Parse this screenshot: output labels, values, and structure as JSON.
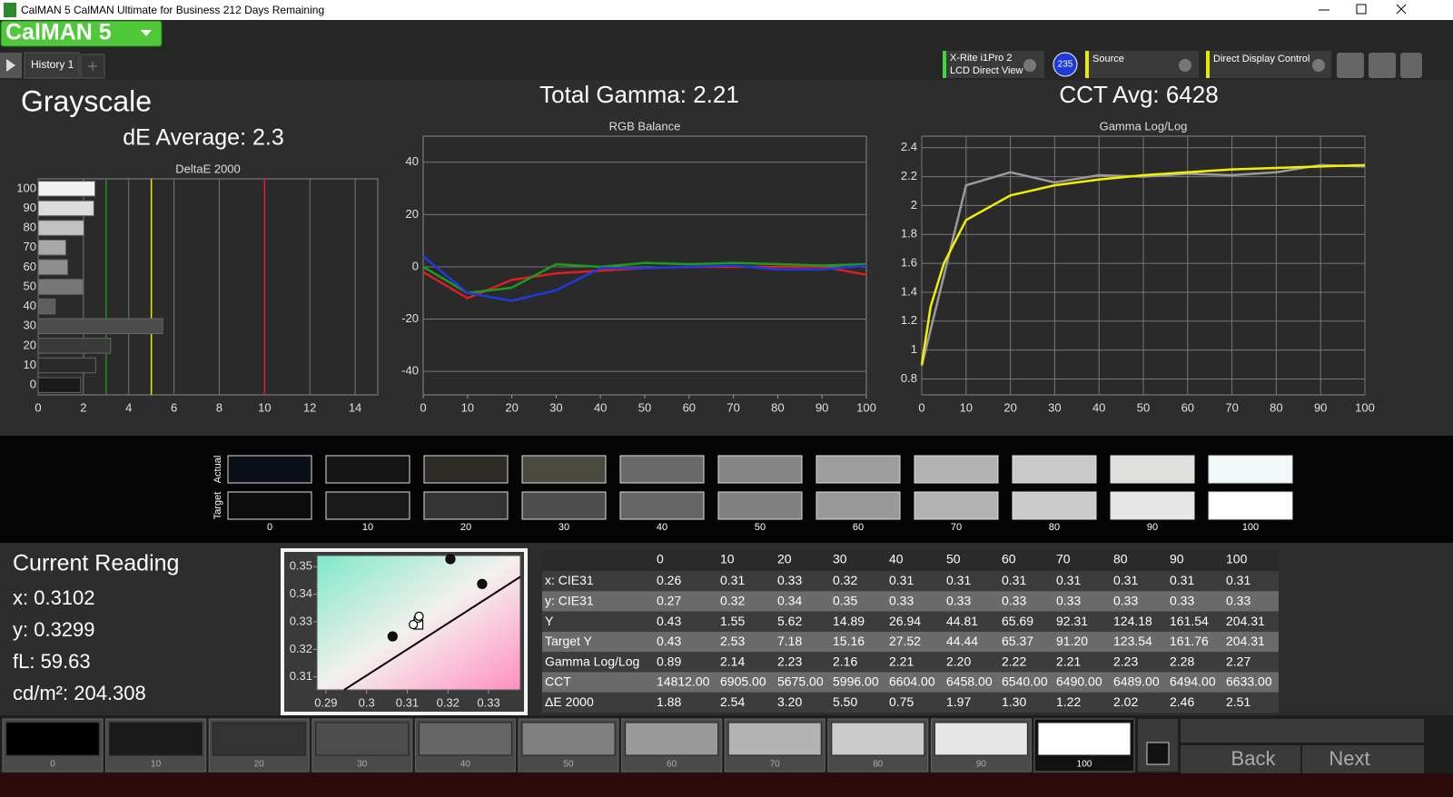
{
  "window": {
    "title": "CalMAN 5 CalMAN Ultimate for Business 212 Days Remaining"
  },
  "toolbar": {
    "logo": "CalMAN 5",
    "tab": "History 1",
    "meter": [
      "X-Rite i1Pro 2",
      "LCD Direct View"
    ],
    "badge": "235",
    "source": "Source",
    "display": "Direct Display Control"
  },
  "header": {
    "title": "Grayscale",
    "de_average": "dE Average: 2.3",
    "total_gamma": "Total Gamma: 2.21",
    "cct_avg": "CCT Avg: 6428"
  },
  "chart_data": [
    {
      "type": "bar",
      "orientation": "horizontal",
      "title": "DeltaE 2000",
      "categories": [
        "0",
        "10",
        "20",
        "30",
        "40",
        "50",
        "60",
        "70",
        "80",
        "90",
        "100"
      ],
      "values": [
        1.88,
        2.54,
        3.2,
        5.5,
        0.75,
        1.97,
        1.3,
        1.22,
        2.02,
        2.46,
        2.51
      ],
      "bar_colors": [
        "#1a1a1a",
        "#2a2a2a",
        "#3a3a3a",
        "#4c4c4c",
        "#5e5e5e",
        "#777777",
        "#8e8e8e",
        "#a8a8a8",
        "#c2c2c2",
        "#dcdcdc",
        "#f2f2f2"
      ],
      "xlim": [
        0,
        15
      ],
      "xticks": [
        0,
        2,
        4,
        6,
        8,
        10,
        12,
        14
      ],
      "grid": "x",
      "reference_lines": [
        {
          "value": 3,
          "color": "#1d8f1d"
        },
        {
          "value": 5,
          "color": "#e5e500"
        },
        {
          "value": 10,
          "color": "#e02020"
        }
      ]
    },
    {
      "type": "line",
      "title": "RGB Balance",
      "x": [
        0,
        10,
        20,
        30,
        40,
        50,
        60,
        70,
        80,
        90,
        100
      ],
      "series": [
        {
          "color": "#e01e1e",
          "values": [
            -2,
            -12,
            -5,
            -2.5,
            -1.5,
            -0.5,
            0,
            0,
            0,
            0,
            -3
          ]
        },
        {
          "color": "#1e9a1e",
          "values": [
            0,
            -10,
            -8,
            1,
            0,
            1.5,
            1,
            1.5,
            1,
            0.5,
            1
          ]
        },
        {
          "color": "#1e3ae0",
          "values": [
            4,
            -10,
            -13,
            -9,
            -0.5,
            -0.5,
            0,
            0.5,
            -1,
            -1,
            0.5
          ]
        }
      ],
      "xlim": [
        0,
        100
      ],
      "xticks": [
        0,
        10,
        20,
        30,
        40,
        50,
        60,
        70,
        80,
        90,
        100
      ],
      "ylim": [
        -49,
        50
      ],
      "yticks": [
        -40,
        -20,
        0,
        20,
        40
      ],
      "grid": "y"
    },
    {
      "type": "line",
      "title": "Gamma Log/Log",
      "x": [
        0,
        10,
        20,
        30,
        40,
        50,
        60,
        70,
        80,
        90,
        100
      ],
      "series": [
        {
          "color": "#9a9a9a",
          "values": [
            0.89,
            2.14,
            2.23,
            2.16,
            2.21,
            2.2,
            2.22,
            2.21,
            2.23,
            2.28,
            2.27
          ]
        },
        {
          "color": "#f0f000",
          "x": [
            0,
            2,
            5,
            10,
            20,
            30,
            40,
            50,
            60,
            70,
            80,
            90,
            100
          ],
          "values": [
            0.9,
            1.3,
            1.6,
            1.9,
            2.07,
            2.14,
            2.18,
            2.21,
            2.23,
            2.25,
            2.26,
            2.27,
            2.28
          ]
        }
      ],
      "xlim": [
        0,
        100
      ],
      "xticks": [
        0,
        10,
        20,
        30,
        40,
        50,
        60,
        70,
        80,
        90,
        100
      ],
      "ylim": [
        0.69,
        2.48
      ],
      "yticks": [
        0.8,
        1,
        1.2,
        1.4,
        1.6,
        1.8,
        2,
        2.2,
        2.4
      ],
      "grid": "both"
    },
    {
      "type": "scatter",
      "series": [
        {
          "marker": "line",
          "color": "#000000",
          "x": [
            0.2945,
            0.3378
          ],
          "values": [
            0.3053,
            0.3463
          ]
        },
        {
          "marker": "dot",
          "color": "#111111",
          "x": [
            0.3206,
            0.3284,
            0.3064
          ],
          "values": [
            0.3527,
            0.3437,
            0.3247
          ]
        },
        {
          "marker": "square",
          "color": "#ffffff",
          "x": [
            0.3127
          ],
          "values": [
            0.329
          ]
        },
        {
          "marker": "circle",
          "color": "#ffffff",
          "x": [
            0.3115,
            0.3127,
            0.3129
          ],
          "values": [
            0.329,
            0.3313,
            0.332
          ]
        }
      ],
      "xlim": [
        0.2878,
        0.3378
      ],
      "xticks": [
        0.29,
        0.3,
        0.31,
        0.32,
        0.33
      ],
      "ylim": [
        0.3053,
        0.354
      ],
      "yticks": [
        0.31,
        0.32,
        0.33,
        0.34,
        0.35
      ],
      "grid": "none"
    }
  ],
  "swatches": {
    "row_labels": [
      "Actual",
      "Target"
    ],
    "labels": [
      "0",
      "10",
      "20",
      "30",
      "40",
      "50",
      "60",
      "70",
      "80",
      "90",
      "100"
    ],
    "actual_colors": [
      "#0a0f18",
      "#151515",
      "#2d2b26",
      "#4a4a40",
      "#6a6a6a",
      "#858585",
      "#9e9e9e",
      "#b3b3b3",
      "#c9c9c9",
      "#e0e0df",
      "#f0f8f8"
    ],
    "target_colors": [
      "#0c0c0c",
      "#1a1a1a",
      "#333333",
      "#4d4d4d",
      "#666666",
      "#808080",
      "#999999",
      "#b3b3b3",
      "#cccccc",
      "#e6e6e6",
      "#ffffff"
    ]
  },
  "reading": {
    "title": "Current Reading",
    "lines": [
      "x: 0.3102",
      "y: 0.3299",
      "fL: 59.63",
      "cd/m²: 204.308"
    ]
  },
  "table": {
    "header": [
      "0",
      "10",
      "20",
      "30",
      "40",
      "50",
      "60",
      "70",
      "80",
      "90",
      "100"
    ],
    "rows": [
      {
        "label": "x: CIE31",
        "cells": [
          "0.26",
          "0.31",
          "0.33",
          "0.32",
          "0.31",
          "0.31",
          "0.31",
          "0.31",
          "0.31",
          "0.31",
          "0.31"
        ]
      },
      {
        "label": "y: CIE31",
        "cells": [
          "0.27",
          "0.32",
          "0.34",
          "0.35",
          "0.33",
          "0.33",
          "0.33",
          "0.33",
          "0.33",
          "0.33",
          "0.33"
        ]
      },
      {
        "label": "Y",
        "cells": [
          "0.43",
          "1.55",
          "5.62",
          "14.89",
          "26.94",
          "44.81",
          "65.69",
          "92.31",
          "124.18",
          "161.54",
          "204.31"
        ]
      },
      {
        "label": "Target Y",
        "cells": [
          "0.43",
          "2.53",
          "7.18",
          "15.16",
          "27.52",
          "44.44",
          "65.37",
          "91.20",
          "123.54",
          "161.76",
          "204.31"
        ]
      },
      {
        "label": "Gamma Log/Log",
        "cells": [
          "0.89",
          "2.14",
          "2.23",
          "2.16",
          "2.21",
          "2.20",
          "2.22",
          "2.21",
          "2.23",
          "2.28",
          "2.27"
        ]
      },
      {
        "label": "CCT",
        "cells": [
          "14812.00",
          "6905.00",
          "5675.00",
          "5996.00",
          "6604.00",
          "6458.00",
          "6540.00",
          "6490.00",
          "6489.00",
          "6494.00",
          "6633.00"
        ]
      },
      {
        "label": "ΔE 2000",
        "cells": [
          "1.88",
          "2.54",
          "3.20",
          "5.50",
          "0.75",
          "1.97",
          "1.30",
          "1.22",
          "2.02",
          "2.46",
          "2.51"
        ]
      }
    ]
  },
  "patches": {
    "labels": [
      "0",
      "10",
      "20",
      "30",
      "40",
      "50",
      "60",
      "70",
      "80",
      "90",
      "100"
    ],
    "colors": [
      "#000000",
      "#1a1a1a",
      "#333333",
      "#4d4d4d",
      "#666666",
      "#808080",
      "#999999",
      "#b3b3b3",
      "#cccccc",
      "#e6e6e6",
      "#ffffff"
    ]
  },
  "nav": {
    "back": "Back",
    "next": "Next"
  }
}
